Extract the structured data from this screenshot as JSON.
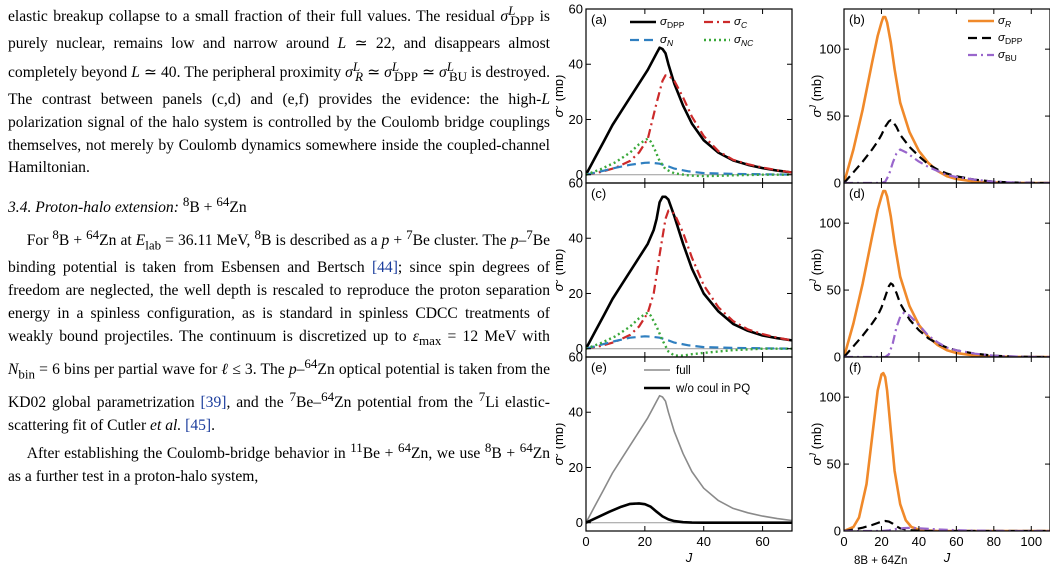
{
  "text": {
    "p1": "elastic breakup collapse to a small fraction of their full values. The residual σ^L_DPP is purely nuclear, remains low and narrow around L ≃ 22, and disappears almost completely beyond L ≃ 40. The peripheral proximity σ^L_R ≃ σ^L_DPP ≃ σ^L_BU is destroyed. The contrast between panels (c,d) and (e,f) provides the evidence: the high-L polarization signal of the halo system is controlled by the Coulomb bridge couplings themselves, not merely by Coulomb dynamics somewhere inside the coupled-channel Hamiltonian.",
    "heading": "3.4. Proton-halo extension: 8B + 64Zn",
    "p2": "For 8B + 64Zn at E_lab = 36.11 MeV, 8B is described as a p + 7Be cluster. The p–7Be binding potential is taken from Esbensen and Bertsch [44]; since spin degrees of freedom are neglected, the well depth is rescaled to reproduce the proton separation energy in a spinless configuration, as is standard in spinless CDCC treatments of weakly bound projectiles. The continuum is discretized up to ε_max = 12 MeV with N_bin = 6 bins per partial wave for ℓ ≤ 3. The p–64Zn optical potential is taken from the KD02 global parametrization [39], and the 7Be–64Zn potential from the 7Li elastic-scattering fit of Cutler et al. [45].",
    "p3": "After establishing the Coulomb-bridge behavior in 11Be + 64Zn, we use 8B + 64Zn as a further test in a proton-halo system,"
  },
  "figure": {
    "caption_fragment": "8B + 64Zn",
    "colors": {
      "dpp": "#000000",
      "c": "#cc2a2a",
      "n": "#2f7fc0",
      "nc": "#3aa83a",
      "r": "#f0892a",
      "bu": "#9966cc",
      "full": "#8a8a8a"
    },
    "axis_labels": {
      "y": "σ^J (mb)",
      "x": "J"
    },
    "left_yticks": [
      "0",
      "20",
      "40",
      "60"
    ],
    "left_xticks": [
      "0",
      "20",
      "40",
      "60"
    ],
    "right_yticks": [
      "0",
      "50",
      "100"
    ],
    "right_xticks": [
      "0",
      "20",
      "40",
      "60",
      "80",
      "100"
    ],
    "panels": {
      "a": {
        "label": "(a)",
        "legend": [
          "σ_DPP",
          "σ_C",
          "σ_N",
          "σ_NC"
        ]
      },
      "b": {
        "label": "(b)",
        "legend": [
          "σ_R",
          "σ_DPP",
          "σ_BU"
        ]
      },
      "c": {
        "label": "(c)"
      },
      "d": {
        "label": "(d)"
      },
      "e": {
        "label": "(e)",
        "legend": [
          "full",
          "w/o coul in PQ"
        ]
      },
      "f": {
        "label": "(f)"
      }
    }
  },
  "chart_data": [
    {
      "panel": "a",
      "type": "line",
      "xlabel": "J",
      "ylabel": "σ^J (mb)",
      "xlim": [
        0,
        70
      ],
      "ylim": [
        -3,
        60
      ],
      "series": [
        {
          "name": "σ_DPP",
          "style": "solid",
          "x": [
            0,
            3,
            6,
            9,
            12,
            15,
            18,
            21,
            23,
            24,
            25,
            26,
            27,
            28,
            30,
            33,
            36,
            40,
            45,
            50,
            55,
            60,
            65,
            70
          ],
          "y": [
            0,
            6,
            12,
            18,
            23,
            28,
            33,
            38,
            42,
            44,
            46,
            45.5,
            44,
            40,
            33,
            25,
            18.5,
            12.5,
            8,
            5.2,
            3.6,
            2.4,
            1.5,
            0.8
          ]
        },
        {
          "name": "σ_C",
          "style": "dashdot",
          "x": [
            0,
            5,
            10,
            15,
            18,
            21,
            24,
            26,
            27,
            28,
            30,
            33,
            36,
            40,
            45,
            50,
            55,
            60,
            65,
            70
          ],
          "y": [
            0,
            1,
            2.5,
            5,
            8,
            13,
            26,
            34,
            36,
            36,
            34,
            28,
            21,
            14,
            8.5,
            5.4,
            3.8,
            2.6,
            1.6,
            0.8
          ]
        },
        {
          "name": "σ_N",
          "style": "dashed",
          "x": [
            0,
            5,
            10,
            15,
            20,
            22,
            25,
            28,
            30,
            35,
            40,
            50,
            60,
            70
          ],
          "y": [
            0,
            1.2,
            2.5,
            3.6,
            4.3,
            4.4,
            4,
            3,
            2.2,
            1.2,
            0.6,
            0.3,
            0.15,
            0.05
          ]
        },
        {
          "name": "σ_NC",
          "style": "dotted",
          "x": [
            0,
            5,
            10,
            15,
            18,
            20,
            21,
            22,
            23,
            25,
            27,
            30,
            35,
            40,
            45,
            50,
            60,
            70
          ],
          "y": [
            0,
            2,
            4.5,
            8,
            11,
            12.5,
            13,
            12,
            10,
            5,
            2,
            0.5,
            -0.3,
            -0.5,
            -0.4,
            -0.2,
            0,
            0
          ]
        }
      ]
    },
    {
      "panel": "b",
      "type": "line",
      "xlabel": "J",
      "ylabel": "σ^J (mb)",
      "xlim": [
        0,
        110
      ],
      "ylim": [
        0,
        130
      ],
      "series": [
        {
          "name": "σ_R",
          "style": "solid",
          "x": [
            0,
            5,
            10,
            15,
            18,
            20,
            21,
            22,
            23,
            25,
            27,
            30,
            35,
            40,
            45,
            50,
            55,
            60,
            70,
            80,
            90,
            100,
            110
          ],
          "y": [
            0,
            25,
            55,
            90,
            110,
            120,
            124,
            124,
            120,
            105,
            85,
            60,
            38,
            24,
            15,
            9,
            5,
            3,
            1,
            0.4,
            0.1,
            0,
            0
          ]
        },
        {
          "name": "σ_DPP",
          "style": "dashed",
          "x": [
            0,
            5,
            10,
            15,
            18,
            20,
            22,
            24,
            25,
            26,
            28,
            30,
            35,
            40,
            45,
            50,
            55,
            60,
            70,
            80,
            90,
            100,
            110
          ],
          "y": [
            0,
            8,
            16,
            25,
            31,
            36,
            42,
            46,
            47,
            46,
            42,
            36,
            27,
            20,
            14,
            10,
            7,
            5,
            2.5,
            1,
            0.4,
            0.1,
            0
          ]
        },
        {
          "name": "σ_BU",
          "style": "dashdot",
          "x": [
            0,
            20,
            22,
            24,
            26,
            28,
            30,
            33,
            36,
            40,
            45,
            50,
            55,
            60,
            70,
            80,
            90,
            100,
            110
          ],
          "y": [
            0,
            0,
            1,
            6,
            15,
            22,
            25,
            23,
            20,
            16,
            12,
            9,
            6,
            4.5,
            2.5,
            1,
            0.4,
            0.1,
            0
          ]
        }
      ]
    },
    {
      "panel": "c",
      "type": "line",
      "xlabel": "J",
      "ylabel": "σ^J (mb)",
      "xlim": [
        0,
        70
      ],
      "ylim": [
        -3,
        60
      ],
      "series": [
        {
          "name": "σ_DPP",
          "style": "solid",
          "x": [
            0,
            3,
            6,
            9,
            12,
            15,
            18,
            21,
            23,
            24,
            25,
            26,
            27,
            28,
            30,
            33,
            36,
            40,
            45,
            50,
            55,
            60,
            65,
            70
          ],
          "y": [
            0,
            6,
            12,
            18,
            23,
            28,
            33,
            38,
            43,
            47,
            53,
            55,
            55,
            54,
            48,
            38,
            29,
            20,
            13.5,
            9,
            6.5,
            4.8,
            3.8,
            3
          ]
        },
        {
          "name": "σ_C",
          "style": "dashdot",
          "x": [
            0,
            5,
            10,
            15,
            18,
            21,
            23,
            25,
            27,
            28,
            30,
            33,
            36,
            40,
            45,
            50,
            55,
            60,
            65,
            70
          ],
          "y": [
            0,
            1,
            2.5,
            5,
            8,
            13,
            20,
            34,
            47,
            50,
            49,
            42,
            33,
            23,
            15,
            10,
            7,
            5.3,
            4,
            3
          ]
        },
        {
          "name": "σ_N",
          "style": "dashed",
          "x": [
            0,
            5,
            10,
            15,
            20,
            22,
            25,
            28,
            30,
            35,
            40,
            50,
            60,
            70
          ],
          "y": [
            0,
            1.4,
            2.8,
            4,
            4.5,
            4.4,
            4,
            3,
            2.2,
            1.2,
            0.6,
            0.3,
            0.15,
            0.05
          ]
        },
        {
          "name": "σ_NC",
          "style": "dotted",
          "x": [
            0,
            5,
            10,
            15,
            18,
            20,
            21,
            22,
            24,
            26,
            28,
            30,
            33,
            36,
            40,
            45,
            50,
            60,
            70
          ],
          "y": [
            0,
            2,
            4.5,
            8,
            11,
            12.5,
            13,
            12,
            8,
            3,
            -1,
            -2.5,
            -2.5,
            -2,
            -1.5,
            -1,
            -0.5,
            0,
            0
          ]
        }
      ]
    },
    {
      "panel": "d",
      "type": "line",
      "xlabel": "J",
      "ylabel": "σ^J (mb)",
      "xlim": [
        0,
        110
      ],
      "ylim": [
        0,
        130
      ],
      "series": [
        {
          "name": "σ_R",
          "style": "solid",
          "x": [
            0,
            5,
            10,
            15,
            18,
            20,
            21,
            22,
            23,
            25,
            27,
            30,
            35,
            40,
            45,
            50,
            55,
            60,
            70,
            80,
            90,
            100,
            110
          ],
          "y": [
            0,
            25,
            55,
            90,
            110,
            120,
            124,
            124,
            120,
            105,
            85,
            60,
            38,
            24,
            15,
            9,
            5,
            3,
            1,
            0.4,
            0.1,
            0,
            0
          ]
        },
        {
          "name": "σ_DPP",
          "style": "dashed",
          "x": [
            0,
            5,
            10,
            15,
            18,
            20,
            22,
            24,
            25,
            26,
            28,
            30,
            35,
            40,
            45,
            50,
            55,
            60,
            70,
            80,
            90,
            100,
            110
          ],
          "y": [
            0,
            8,
            16,
            25,
            31,
            37,
            45,
            53,
            55,
            54,
            48,
            40,
            28,
            20,
            14,
            10,
            7,
            5,
            2.5,
            1,
            0.4,
            0.1,
            0
          ]
        },
        {
          "name": "σ_BU",
          "style": "dashdot",
          "x": [
            0,
            22,
            24,
            26,
            28,
            30,
            32,
            35,
            40,
            45,
            50,
            55,
            60,
            70,
            80,
            90,
            100,
            110
          ],
          "y": [
            0,
            0,
            2,
            10,
            22,
            30,
            33,
            31,
            24,
            16,
            11,
            7,
            5,
            2.5,
            1,
            0.4,
            0.1,
            0
          ]
        }
      ]
    },
    {
      "panel": "e",
      "type": "line",
      "xlabel": "J",
      "ylabel": "σ^J (mb)",
      "xlim": [
        0,
        70
      ],
      "ylim": [
        -3,
        60
      ],
      "series": [
        {
          "name": "full",
          "style": "solid-gray",
          "x": [
            0,
            3,
            6,
            9,
            12,
            15,
            18,
            21,
            23,
            24,
            25,
            26,
            27,
            28,
            30,
            33,
            36,
            40,
            45,
            50,
            55,
            60,
            65,
            70
          ],
          "y": [
            0,
            6,
            12,
            18,
            23,
            28,
            33,
            38,
            42,
            44,
            46,
            45.5,
            44,
            40,
            33,
            25,
            18.5,
            12.5,
            8,
            5.2,
            3.6,
            2.4,
            1.5,
            0.8
          ]
        },
        {
          "name": "w/o coul in PQ",
          "style": "solid-thick",
          "x": [
            0,
            4,
            8,
            12,
            15,
            18,
            20,
            22,
            24,
            26,
            28,
            30,
            33,
            36,
            40,
            45,
            50,
            60,
            70
          ],
          "y": [
            0,
            2,
            4,
            5.8,
            6.8,
            7,
            6.7,
            5.8,
            4,
            2.3,
            1.2,
            0.6,
            0.2,
            0.05,
            0,
            0,
            0,
            0,
            0
          ]
        }
      ]
    },
    {
      "panel": "f",
      "type": "line",
      "xlabel": "J",
      "ylabel": "σ^J (mb)",
      "xlim": [
        0,
        110
      ],
      "ylim": [
        0,
        130
      ],
      "series": [
        {
          "name": "σ_R",
          "style": "solid",
          "x": [
            0,
            5,
            8,
            12,
            15,
            18,
            20,
            21,
            22,
            23,
            25,
            27,
            30,
            33,
            36,
            40,
            45,
            50,
            60,
            70,
            80,
            90,
            100,
            110
          ],
          "y": [
            0,
            3,
            10,
            35,
            70,
            105,
            117,
            118,
            115,
            105,
            75,
            45,
            20,
            8,
            3,
            1,
            0.3,
            0,
            0,
            0,
            0,
            0,
            0,
            0
          ]
        },
        {
          "name": "σ_DPP",
          "style": "dashed",
          "x": [
            0,
            5,
            10,
            15,
            18,
            20,
            22,
            24,
            26,
            28,
            30,
            35,
            40,
            50,
            60,
            70,
            80,
            90,
            100,
            110
          ],
          "y": [
            0,
            1,
            2.5,
            4.5,
            6,
            7,
            7.5,
            7,
            5.5,
            3.5,
            2,
            0.6,
            0.2,
            0,
            0,
            0,
            0,
            0,
            0,
            0
          ]
        },
        {
          "name": "σ_BU",
          "style": "dashdot",
          "x": [
            0,
            20,
            24,
            28,
            32,
            36,
            40,
            50,
            60,
            70,
            80,
            90,
            100,
            110
          ],
          "y": [
            0,
            0,
            0.5,
            1.5,
            2.2,
            2.4,
            2,
            1.2,
            0.6,
            0.3,
            0.1,
            0,
            0,
            0
          ]
        }
      ]
    }
  ]
}
